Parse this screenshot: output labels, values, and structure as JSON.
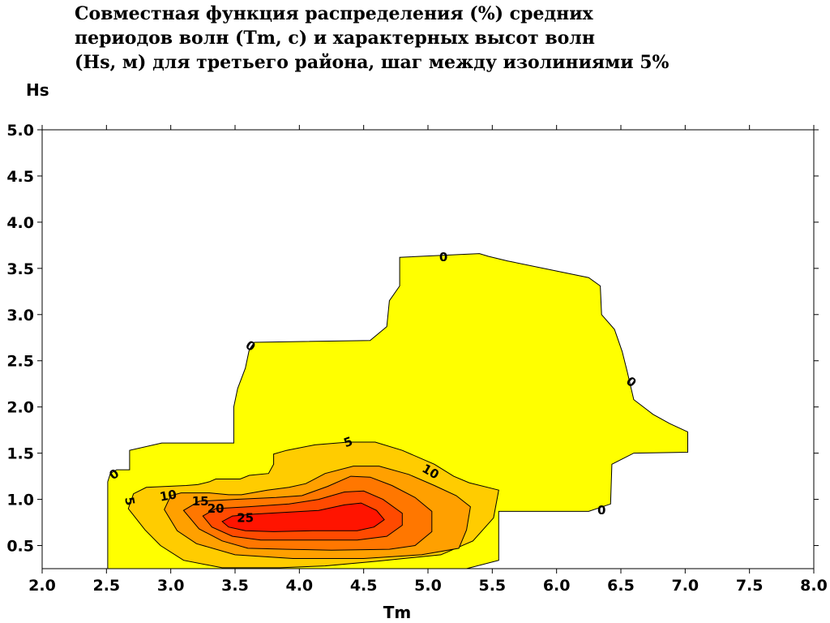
{
  "chart_data": {
    "type": "contour",
    "title_lines": [
      "Совместная функция распределения (%) средних",
      "периодов волн (Tm, с) и характерных высот волн",
      "(Hs, м) для третьего района, шаг между изолиниями 5%"
    ],
    "xlabel": "Tm",
    "ylabel": "Hs",
    "xlim": [
      2.0,
      8.0
    ],
    "ylim": [
      0.25,
      5.0
    ],
    "x_ticks": [
      "2.0",
      "2.5",
      "3.0",
      "3.5",
      "4.0",
      "4.5",
      "5.0",
      "5.5",
      "6.0",
      "6.5",
      "7.0",
      "7.5",
      "8.0"
    ],
    "y_ticks": [
      "0.5",
      "1.0",
      "1.5",
      "2.0",
      "2.5",
      "3.0",
      "3.5",
      "4.0",
      "4.5",
      "5.0"
    ],
    "grid": false,
    "contour_step": 5,
    "levels": [
      {
        "level": 0,
        "color": "#ffff00",
        "polygon": [
          [
            2.51,
            0.25
          ],
          [
            2.51,
            1.19
          ],
          [
            2.53,
            1.28
          ],
          [
            2.58,
            1.32
          ],
          [
            2.68,
            1.32
          ],
          [
            2.68,
            1.53
          ],
          [
            2.93,
            1.61
          ],
          [
            3.49,
            1.61
          ],
          [
            3.49,
            2.0
          ],
          [
            3.52,
            2.2
          ],
          [
            3.58,
            2.42
          ],
          [
            3.61,
            2.62
          ],
          [
            3.65,
            2.7
          ],
          [
            4.55,
            2.72
          ],
          [
            4.68,
            2.87
          ],
          [
            4.7,
            3.15
          ],
          [
            4.78,
            3.31
          ],
          [
            4.78,
            3.62
          ],
          [
            5.4,
            3.66
          ],
          [
            5.47,
            3.63
          ],
          [
            5.62,
            3.58
          ],
          [
            6.25,
            3.4
          ],
          [
            6.34,
            3.31
          ],
          [
            6.35,
            3.0
          ],
          [
            6.45,
            2.84
          ],
          [
            6.51,
            2.6
          ],
          [
            6.55,
            2.38
          ],
          [
            6.6,
            2.08
          ],
          [
            6.75,
            1.92
          ],
          [
            6.88,
            1.82
          ],
          [
            7.02,
            1.73
          ],
          [
            7.02,
            1.51
          ],
          [
            6.6,
            1.5
          ],
          [
            6.43,
            1.38
          ],
          [
            6.42,
            0.95
          ],
          [
            6.25,
            0.87
          ],
          [
            5.55,
            0.87
          ],
          [
            5.55,
            0.34
          ],
          [
            5.3,
            0.25
          ]
        ]
      },
      {
        "level": 5,
        "color": "#ffcc00",
        "polygon": [
          [
            2.67,
            0.9
          ],
          [
            2.71,
            1.06
          ],
          [
            2.81,
            1.13
          ],
          [
            3.12,
            1.15
          ],
          [
            3.21,
            1.16
          ],
          [
            3.3,
            1.19
          ],
          [
            3.35,
            1.22
          ],
          [
            3.54,
            1.22
          ],
          [
            3.61,
            1.26
          ],
          [
            3.76,
            1.28
          ],
          [
            3.8,
            1.38
          ],
          [
            3.8,
            1.49
          ],
          [
            3.9,
            1.53
          ],
          [
            4.12,
            1.59
          ],
          [
            4.38,
            1.62
          ],
          [
            4.59,
            1.62
          ],
          [
            4.8,
            1.53
          ],
          [
            5.05,
            1.38
          ],
          [
            5.2,
            1.25
          ],
          [
            5.32,
            1.18
          ],
          [
            5.55,
            1.1
          ],
          [
            5.51,
            0.8
          ],
          [
            5.35,
            0.55
          ],
          [
            5.1,
            0.4
          ],
          [
            4.6,
            0.33
          ],
          [
            4.2,
            0.28
          ],
          [
            3.85,
            0.26
          ],
          [
            3.4,
            0.26
          ],
          [
            3.1,
            0.34
          ],
          [
            2.92,
            0.5
          ],
          [
            2.8,
            0.67
          ]
        ]
      },
      {
        "level": 10,
        "color": "#ffa000",
        "polygon": [
          [
            2.95,
            0.89
          ],
          [
            3.0,
            1.04
          ],
          [
            3.08,
            1.07
          ],
          [
            3.3,
            1.07
          ],
          [
            3.45,
            1.05
          ],
          [
            3.55,
            1.05
          ],
          [
            3.75,
            1.1
          ],
          [
            3.92,
            1.13
          ],
          [
            4.05,
            1.17
          ],
          [
            4.2,
            1.28
          ],
          [
            4.42,
            1.36
          ],
          [
            4.62,
            1.36
          ],
          [
            4.85,
            1.27
          ],
          [
            5.05,
            1.15
          ],
          [
            5.22,
            1.04
          ],
          [
            5.33,
            0.92
          ],
          [
            5.3,
            0.67
          ],
          [
            5.24,
            0.47
          ],
          [
            4.95,
            0.4
          ],
          [
            4.5,
            0.36
          ],
          [
            3.95,
            0.36
          ],
          [
            3.5,
            0.4
          ],
          [
            3.2,
            0.52
          ],
          [
            3.05,
            0.66
          ]
        ]
      },
      {
        "level": 15,
        "color": "#ff7700",
        "polygon": [
          [
            3.1,
            0.88
          ],
          [
            3.22,
            0.98
          ],
          [
            3.5,
            1.0
          ],
          [
            3.82,
            1.02
          ],
          [
            4.02,
            1.04
          ],
          [
            4.22,
            1.14
          ],
          [
            4.4,
            1.25
          ],
          [
            4.55,
            1.24
          ],
          [
            4.72,
            1.15
          ],
          [
            4.9,
            1.02
          ],
          [
            5.03,
            0.87
          ],
          [
            5.03,
            0.65
          ],
          [
            4.9,
            0.5
          ],
          [
            4.7,
            0.46
          ],
          [
            4.25,
            0.45
          ],
          [
            3.9,
            0.46
          ],
          [
            3.6,
            0.47
          ],
          [
            3.4,
            0.55
          ],
          [
            3.22,
            0.68
          ]
        ]
      },
      {
        "level": 20,
        "color": "#ff4a00",
        "polygon": [
          [
            3.25,
            0.82
          ],
          [
            3.35,
            0.9
          ],
          [
            3.6,
            0.92
          ],
          [
            3.92,
            0.95
          ],
          [
            4.15,
            1.0
          ],
          [
            4.35,
            1.08
          ],
          [
            4.5,
            1.09
          ],
          [
            4.65,
            1.0
          ],
          [
            4.8,
            0.85
          ],
          [
            4.8,
            0.72
          ],
          [
            4.68,
            0.6
          ],
          [
            4.45,
            0.56
          ],
          [
            4.0,
            0.56
          ],
          [
            3.7,
            0.56
          ],
          [
            3.48,
            0.6
          ],
          [
            3.32,
            0.7
          ]
        ]
      },
      {
        "level": 25,
        "color": "#ff1400",
        "polygon": [
          [
            3.4,
            0.76
          ],
          [
            3.48,
            0.82
          ],
          [
            3.65,
            0.84
          ],
          [
            3.9,
            0.86
          ],
          [
            4.15,
            0.88
          ],
          [
            4.35,
            0.94
          ],
          [
            4.48,
            0.96
          ],
          [
            4.6,
            0.88
          ],
          [
            4.66,
            0.78
          ],
          [
            4.58,
            0.7
          ],
          [
            4.45,
            0.66
          ],
          [
            4.1,
            0.66
          ],
          [
            3.8,
            0.65
          ],
          [
            3.58,
            0.66
          ],
          [
            3.45,
            0.7
          ]
        ]
      }
    ],
    "contour_labels": [
      {
        "text": "0",
        "x": 5.12,
        "y": 3.62,
        "angle": 0
      },
      {
        "text": "0",
        "x": 3.62,
        "y": 2.66,
        "angle": 35
      },
      {
        "text": "0",
        "x": 6.58,
        "y": 2.27,
        "angle": 40
      },
      {
        "text": "0",
        "x": 2.56,
        "y": 1.27,
        "angle": -35
      },
      {
        "text": "0",
        "x": 6.35,
        "y": 0.88,
        "angle": 0
      },
      {
        "text": "5",
        "x": 4.38,
        "y": 1.62,
        "angle": -20
      },
      {
        "text": "5",
        "x": 2.68,
        "y": 0.98,
        "angle": 80
      },
      {
        "text": "10",
        "x": 5.02,
        "y": 1.3,
        "angle": 30
      },
      {
        "text": "10",
        "x": 2.98,
        "y": 1.04,
        "angle": -10
      },
      {
        "text": "15",
        "x": 3.23,
        "y": 0.98,
        "angle": 0
      },
      {
        "text": "20",
        "x": 3.35,
        "y": 0.9,
        "angle": 0
      },
      {
        "text": "25",
        "x": 3.58,
        "y": 0.8,
        "angle": 0
      }
    ]
  }
}
